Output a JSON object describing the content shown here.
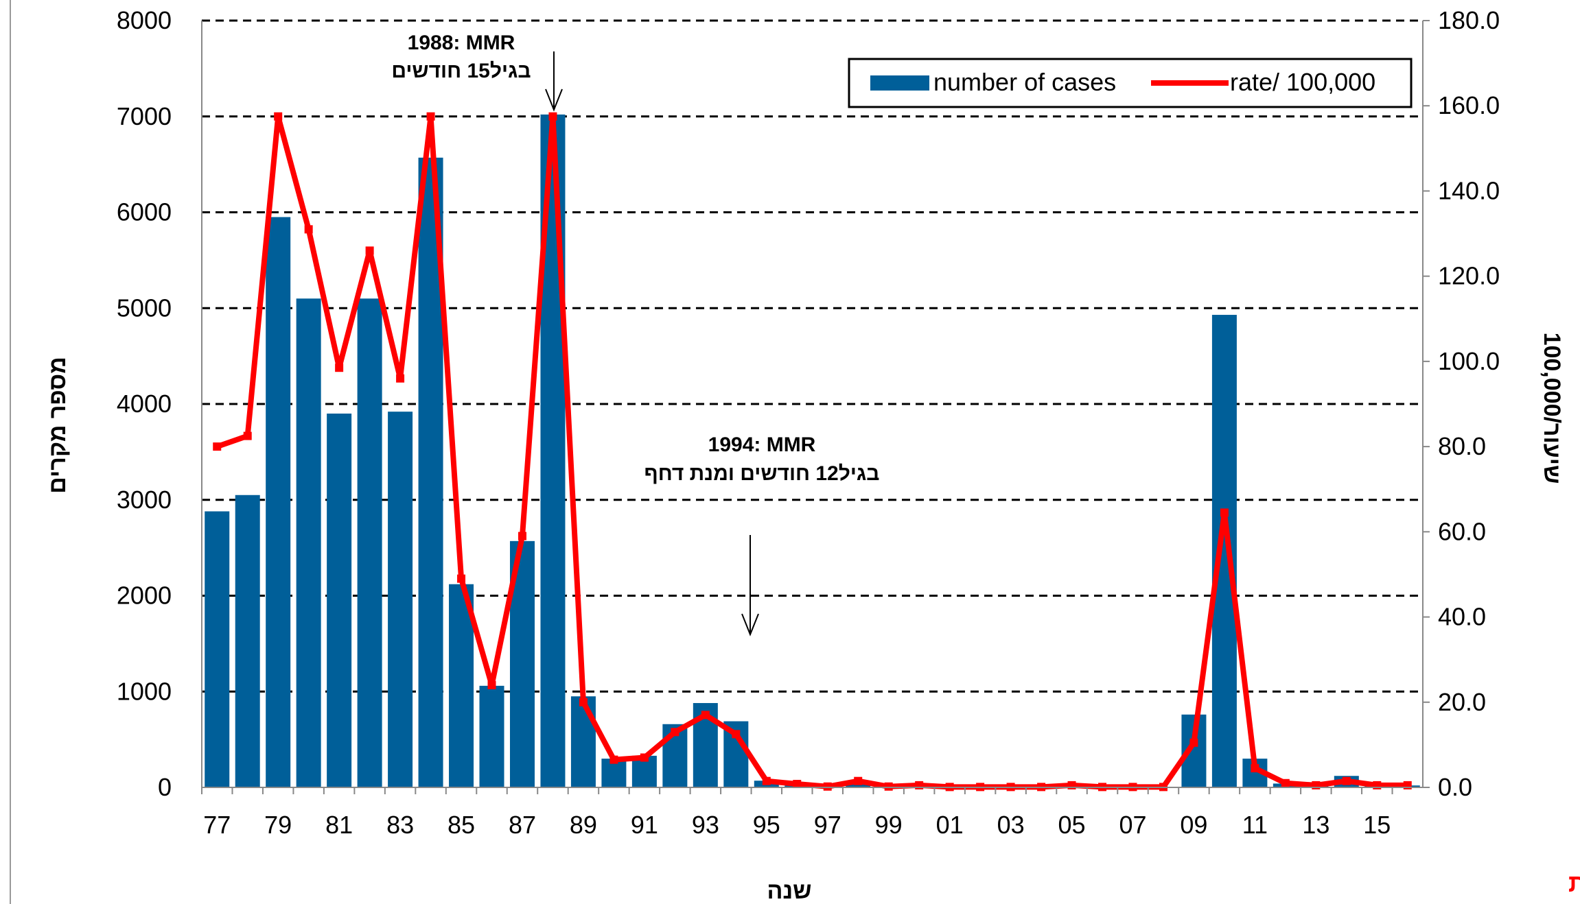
{
  "chart_data": {
    "type": "bar+line",
    "categories": [
      "77",
      "78",
      "79",
      "80",
      "81",
      "82",
      "83",
      "84",
      "85",
      "86",
      "87",
      "88",
      "89",
      "90",
      "91",
      "92",
      "93",
      "94",
      "95",
      "96",
      "97",
      "98",
      "99",
      "00",
      "01",
      "02",
      "03",
      "04",
      "05",
      "06",
      "07",
      "08",
      "09",
      "10",
      "11",
      "12",
      "13",
      "14",
      "15",
      "16"
    ],
    "x_tick_labels": [
      "77",
      "79",
      "81",
      "83",
      "85",
      "87",
      "89",
      "91",
      "93",
      "95",
      "97",
      "99",
      "01",
      "03",
      "05",
      "07",
      "09",
      "11",
      "13",
      "15"
    ],
    "xlabel": "שנה",
    "ylabel_left": "מספר מקרים",
    "ylabel_right": "שיעור/100,000",
    "ylim_left": [
      0,
      8000
    ],
    "yticks_left": [
      "0",
      "1000",
      "2000",
      "3000",
      "4000",
      "5000",
      "6000",
      "7000",
      "8000"
    ],
    "ylim_right": [
      0,
      180
    ],
    "yticks_right": [
      "0.0",
      "20.0",
      "40.0",
      "60.0",
      "80.0",
      "100.0",
      "120.0",
      "140.0",
      "160.0",
      "180.0"
    ],
    "grid": "horizontal dashed",
    "legend_placement": "top-right",
    "series": [
      {
        "name": "number of cases",
        "type": "bar",
        "axis": "left",
        "color": "#005f99",
        "values": [
          2880,
          3050,
          5950,
          5100,
          3900,
          5100,
          3920,
          6570,
          2120,
          1060,
          2570,
          7020,
          950,
          300,
          330,
          660,
          880,
          690,
          70,
          20,
          10,
          40,
          10,
          10,
          5,
          5,
          5,
          5,
          30,
          5,
          5,
          5,
          760,
          4930,
          300,
          40,
          20,
          120,
          20,
          20
        ]
      },
      {
        "name": "rate/ 100,000",
        "type": "line",
        "axis": "right",
        "color": "#ff0000",
        "values": [
          80,
          82.5,
          157.5,
          131,
          98.5,
          126,
          96,
          157.5,
          49,
          24,
          59,
          157.5,
          20,
          6.5,
          7,
          13,
          17,
          12.5,
          1.5,
          0.8,
          0.2,
          1.5,
          0.2,
          0.5,
          0.1,
          0.1,
          0.1,
          0.1,
          0.5,
          0.1,
          0.1,
          0.1,
          10.5,
          64.5,
          4.5,
          1.0,
          0.5,
          1.5,
          0.5,
          0.5
        ]
      }
    ],
    "annotations": [
      {
        "line1": "1988: MMR",
        "line2": "בגיל15 חודשים",
        "year": "88"
      },
      {
        "line1": "1994: MMR",
        "line2": "בגיל12 חודשים ומנת דחף",
        "year": "94"
      }
    ],
    "source": "האגף לאפידמיולוגיה, משרד הבריאות"
  }
}
